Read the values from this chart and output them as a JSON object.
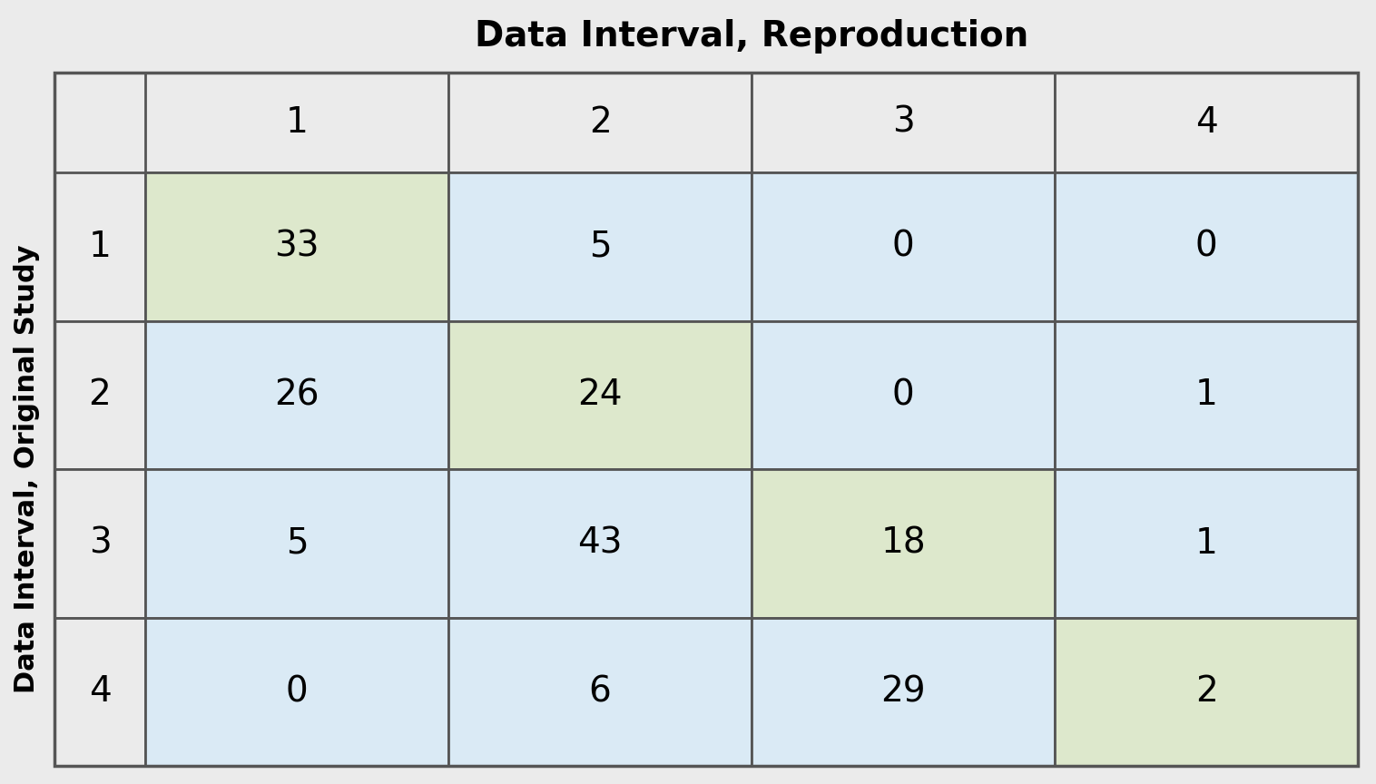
{
  "title": "Data Interval, Reproduction",
  "ylabel": "Data Interval, Original Study",
  "col_labels": [
    "1",
    "2",
    "3",
    "4"
  ],
  "row_labels": [
    "1",
    "2",
    "3",
    "4"
  ],
  "matrix": [
    [
      33,
      5,
      0,
      0
    ],
    [
      26,
      24,
      0,
      1
    ],
    [
      5,
      43,
      18,
      1
    ],
    [
      0,
      6,
      29,
      2
    ]
  ],
  "diagonal_color": "#dde8cc",
  "off_diagonal_color": "#daeaf5",
  "outer_bg_color": "#ebebeb",
  "border_color": "#555555",
  "text_color": "#000000",
  "title_fontsize": 28,
  "ylabel_fontsize": 22,
  "cell_fontsize": 28,
  "header_fontsize": 28,
  "figsize": [
    15.16,
    8.64
  ]
}
